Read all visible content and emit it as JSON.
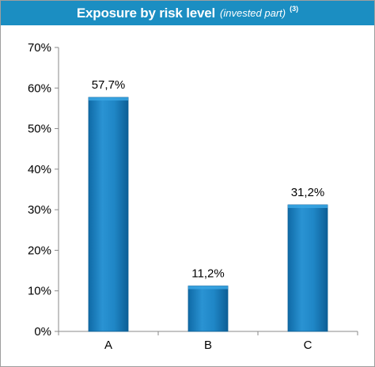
{
  "header": {
    "title": "Exposure by risk level",
    "subtitle": "(invested part)",
    "note": "(3)"
  },
  "colors": {
    "header_bg": "#1b8ec2",
    "bar_fill": "#1a7fc0",
    "bar_edge": "#0e5f95"
  },
  "chart_data": {
    "type": "bar",
    "title": "Exposure by risk level (invested part) (3)",
    "categories": [
      "A",
      "B",
      "C"
    ],
    "values": [
      57.7,
      11.2,
      31.2
    ],
    "value_labels": [
      "57,7%",
      "11,2%",
      "31,2%"
    ],
    "ylim": [
      0,
      70
    ],
    "yticks": [
      0,
      10,
      20,
      30,
      40,
      50,
      60,
      70
    ],
    "ytick_labels": [
      "0%",
      "10%",
      "20%",
      "30%",
      "40%",
      "50%",
      "60%",
      "70%"
    ],
    "xlabel": "",
    "ylabel": "",
    "grid": false,
    "legend": "none"
  }
}
